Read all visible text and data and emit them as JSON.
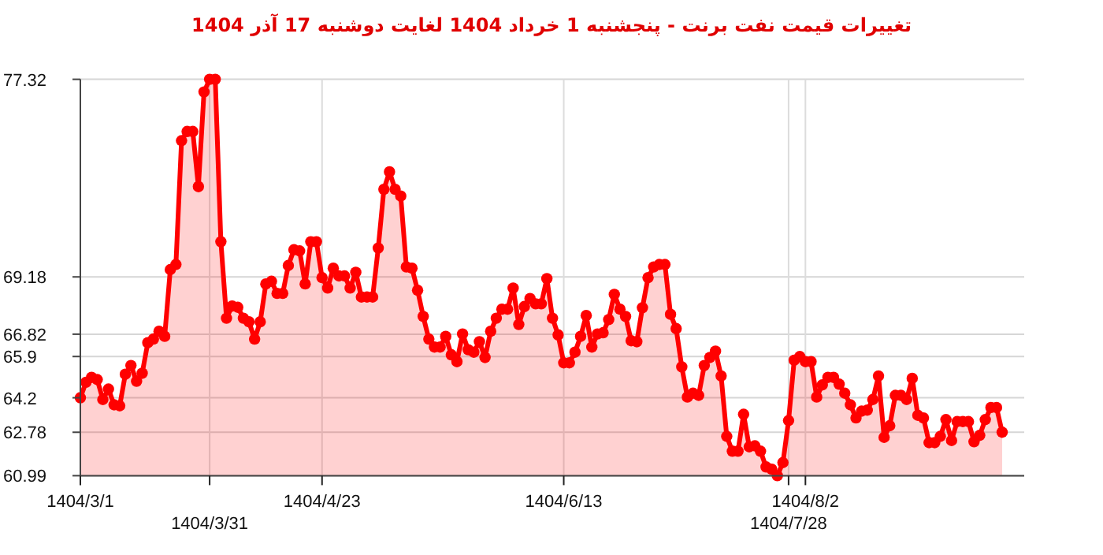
{
  "chart_data": {
    "type": "area",
    "title": "تغییرات قیمت نفت برنت - پنجشنبه  1 خرداد 1404 لغایت  دوشنبه  17 آذر 1404",
    "categories": [
      "1404/3/1",
      null,
      null,
      null,
      null,
      null,
      null,
      null,
      null,
      null,
      null,
      null,
      null,
      null,
      null,
      null,
      null,
      null,
      null,
      null,
      null,
      null,
      null,
      "1404/3/31",
      null,
      null,
      null,
      null,
      null,
      null,
      null,
      null,
      null,
      null,
      null,
      null,
      null,
      null,
      null,
      null,
      null,
      null,
      null,
      "1404/4/23",
      null,
      null,
      null,
      null,
      null,
      null,
      null,
      null,
      null,
      null,
      null,
      null,
      null,
      null,
      null,
      null,
      null,
      null,
      null,
      null,
      null,
      null,
      null,
      null,
      null,
      null,
      null,
      null,
      null,
      null,
      null,
      null,
      null,
      null,
      null,
      null,
      null,
      null,
      null,
      null,
      null,
      null,
      "1404/6/13",
      null,
      null,
      null,
      null,
      null,
      null,
      null,
      null,
      null,
      null,
      null,
      null,
      null,
      null,
      null,
      null,
      null,
      null,
      null,
      null,
      null,
      null,
      null,
      null,
      null,
      null,
      null,
      null,
      null,
      null,
      null,
      null,
      null,
      null,
      null,
      null,
      null,
      null,
      null,
      "1404/7/28",
      null,
      null,
      "1404/8/2",
      null,
      null,
      null,
      null,
      null,
      null,
      null,
      null,
      null,
      null,
      null,
      null,
      null,
      null,
      null,
      null,
      null,
      null,
      null,
      null,
      null,
      null,
      null,
      null,
      null,
      null,
      null,
      null,
      null,
      null,
      null,
      null,
      null,
      null,
      null
    ],
    "series": [
      {
        "color": "#ff0000",
        "values": [
          64.2,
          64.84,
          65.04,
          64.95,
          64.13,
          64.56,
          63.91,
          63.87,
          65.17,
          65.53,
          64.88,
          65.21,
          66.47,
          66.62,
          66.94,
          66.73,
          69.48,
          69.69,
          74.79,
          75.17,
          75.17,
          72.9,
          76.8,
          77.32,
          77.32,
          70.63,
          67.48,
          67.98,
          67.93,
          67.48,
          67.33,
          66.62,
          67.33,
          68.89,
          69.0,
          68.5,
          68.5,
          69.65,
          70.3,
          70.25,
          68.89,
          70.63,
          70.63,
          69.15,
          68.72,
          69.54,
          69.22,
          69.22,
          68.72,
          69.37,
          68.35,
          68.35,
          68.35,
          70.37,
          72.79,
          73.51,
          72.79,
          72.51,
          69.59,
          69.54,
          68.63,
          67.55,
          66.62,
          66.29,
          66.29,
          66.73,
          65.97,
          65.69,
          66.83,
          66.18,
          66.08,
          66.51,
          65.86,
          66.94,
          67.48,
          67.85,
          67.85,
          68.72,
          67.22,
          67.96,
          68.29,
          68.07,
          68.07,
          69.11,
          67.48,
          66.79,
          65.64,
          65.64,
          66.08,
          66.73,
          67.59,
          66.29,
          66.83,
          66.88,
          67.42,
          68.46,
          67.85,
          67.55,
          66.55,
          66.51,
          67.91,
          69.15,
          69.59,
          69.69,
          69.69,
          67.64,
          67.05,
          65.47,
          64.23,
          64.39,
          64.3,
          65.53,
          65.86,
          66.12,
          65.1,
          62.61,
          62.0,
          62.0,
          63.52,
          62.18,
          62.22,
          62.0,
          61.35,
          61.26,
          60.99,
          61.53,
          63.26,
          65.75,
          65.9,
          65.69,
          65.69,
          64.23,
          64.73,
          65.04,
          65.04,
          64.76,
          64.39,
          63.91,
          63.37,
          63.65,
          63.69,
          64.13,
          65.1,
          62.57,
          63.05,
          64.3,
          64.3,
          64.13,
          65.0,
          63.48,
          63.37,
          62.35,
          62.35,
          62.61,
          63.3,
          62.44,
          63.22,
          63.22,
          63.22,
          62.39,
          62.65,
          63.3,
          63.8,
          63.8,
          62.78
        ]
      }
    ],
    "ylim": [
      60.99,
      77.32
    ],
    "yticks": [
      60.99,
      62.78,
      64.2,
      65.9,
      66.82,
      69.18,
      77.32
    ],
    "grid": true,
    "marker": "circle",
    "line_style": "solid"
  }
}
